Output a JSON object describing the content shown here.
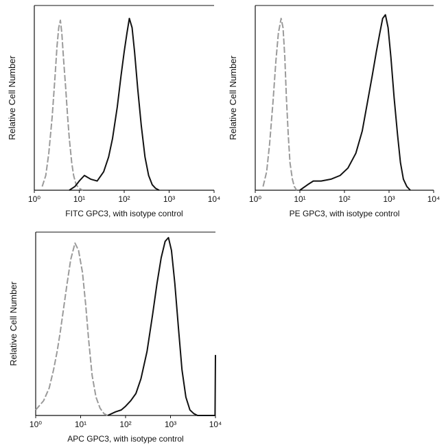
{
  "chart_data": [
    {
      "type": "line",
      "xscale": "log",
      "xlabel": "FITC GPC3, with isotype control",
      "ylabel": "Relative Cell Number",
      "xlim": [
        1,
        10000
      ],
      "ylim": [
        0,
        100
      ],
      "xticks": [
        {
          "value": 1,
          "label": "10⁰"
        },
        {
          "value": 10,
          "label": "10¹"
        },
        {
          "value": 100,
          "label": "10²"
        },
        {
          "value": 1000,
          "label": "10³"
        },
        {
          "value": 10000,
          "label": "10⁴"
        }
      ],
      "series": [
        {
          "color": "#9a9a9a",
          "style": "dashed",
          "x": [
            1.5,
            1.8,
            2.1,
            2.5,
            2.9,
            3.2,
            3.5,
            3.8,
            4.1,
            4.5,
            5,
            5.5,
            6,
            6.8,
            7.5,
            8.5,
            10,
            12
          ],
          "values": [
            2,
            8,
            20,
            40,
            62,
            78,
            88,
            92,
            85,
            70,
            55,
            40,
            28,
            15,
            8,
            3,
            1,
            0
          ]
        },
        {
          "color": "#111111",
          "style": "solid",
          "x": [
            6,
            8,
            10,
            13,
            18,
            25,
            35,
            45,
            55,
            70,
            85,
            100,
            115,
            130,
            150,
            170,
            200,
            240,
            290,
            350,
            420,
            500,
            600
          ],
          "values": [
            0,
            2,
            5,
            8,
            6,
            5,
            10,
            18,
            28,
            45,
            62,
            75,
            85,
            93,
            88,
            75,
            55,
            35,
            18,
            8,
            3,
            1,
            0
          ]
        }
      ]
    },
    {
      "type": "line",
      "xscale": "log",
      "xlabel": "PE GPC3, with isotype control",
      "ylabel": "Relative Cell Number",
      "xlim": [
        1,
        10000
      ],
      "ylim": [
        0,
        100
      ],
      "xticks": [
        {
          "value": 1,
          "label": "10⁰"
        },
        {
          "value": 10,
          "label": "10¹"
        },
        {
          "value": 100,
          "label": "10²"
        },
        {
          "value": 1000,
          "label": "10³"
        },
        {
          "value": 10000,
          "label": "10⁴"
        }
      ],
      "series": [
        {
          "color": "#9a9a9a",
          "style": "dashed",
          "x": [
            1.5,
            1.8,
            2.1,
            2.5,
            2.9,
            3.3,
            3.8,
            4.2,
            4.6,
            5,
            5.5,
            6,
            6.8,
            7.5,
            8.5
          ],
          "values": [
            2,
            10,
            25,
            48,
            70,
            85,
            93,
            88,
            72,
            50,
            30,
            15,
            6,
            2,
            0
          ]
        },
        {
          "color": "#111111",
          "style": "solid",
          "x": [
            10,
            15,
            20,
            30,
            50,
            80,
            120,
            180,
            250,
            330,
            420,
            520,
            620,
            720,
            830,
            950,
            1100,
            1300,
            1550,
            1800,
            2100,
            2500,
            3000
          ],
          "values": [
            0,
            3,
            5,
            5,
            6,
            8,
            12,
            20,
            32,
            48,
            62,
            75,
            85,
            93,
            95,
            88,
            72,
            50,
            30,
            15,
            6,
            2,
            0
          ]
        }
      ]
    },
    {
      "type": "line",
      "xscale": "log",
      "xlabel": "APC GPC3, with isotype control",
      "ylabel": "Relative Cell Number",
      "xlim": [
        1,
        10000
      ],
      "ylim": [
        0,
        100
      ],
      "xticks": [
        {
          "value": 1,
          "label": "10⁰"
        },
        {
          "value": 10,
          "label": "10¹"
        },
        {
          "value": 100,
          "label": "10²"
        },
        {
          "value": 1000,
          "label": "10³"
        },
        {
          "value": 10000,
          "label": "10⁴"
        }
      ],
      "series": [
        {
          "color": "#9a9a9a",
          "style": "dashed",
          "x": [
            1,
            1.5,
            2,
            2.5,
            3,
            3.5,
            4,
            5,
            6,
            7.5,
            9,
            11,
            13,
            15,
            18,
            22,
            27,
            33,
            40
          ],
          "values": [
            3,
            8,
            15,
            25,
            35,
            45,
            55,
            72,
            85,
            94,
            90,
            78,
            60,
            42,
            22,
            10,
            4,
            1,
            0
          ]
        },
        {
          "color": "#111111",
          "style": "solid",
          "x": [
            40,
            60,
            80,
            100,
            130,
            170,
            220,
            300,
            400,
            500,
            620,
            760,
            900,
            1050,
            1250,
            1500,
            1800,
            2200,
            2700,
            3300,
            4000,
            9800,
            10000
          ],
          "values": [
            0,
            2,
            3,
            5,
            8,
            12,
            20,
            35,
            55,
            72,
            86,
            95,
            97,
            90,
            72,
            48,
            25,
            10,
            3,
            1,
            0,
            0,
            33
          ]
        }
      ]
    }
  ]
}
